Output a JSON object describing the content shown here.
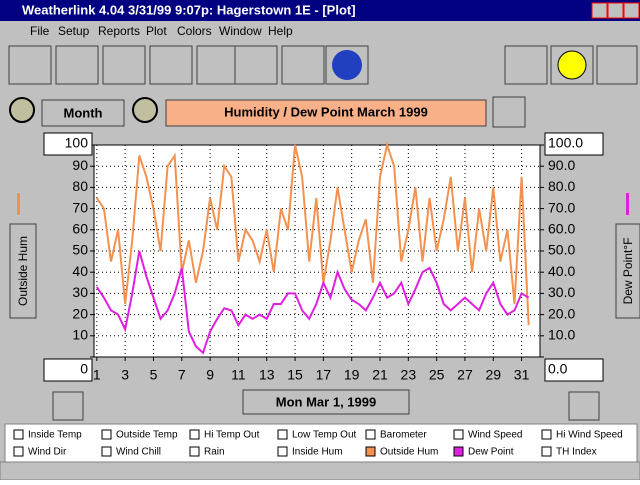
{
  "ui": {
    "window_title": "Weatherlink 4.04   3/31/99   9:07p: Hagerstown 1E - [Plot]",
    "menu": [
      "File",
      "Setup",
      "Reports",
      "Plot",
      "Colors",
      "Window",
      "Help"
    ],
    "period_button": "Month",
    "date_button": "Mon Mar 1, 1999",
    "options": [
      "Inside Temp",
      "Outside Temp",
      "Hi Temp Out",
      "Low Temp Out",
      "Barometer",
      "Wind Speed",
      "Hi Wind Speed",
      "Wind Dir",
      "Wind Chill",
      "Rain",
      "Inside Hum",
      "TH Index"
    ]
  },
  "chart_data": {
    "type": "line",
    "title": "Humidity  /  Dew Point   March 1999",
    "ylabel": "Outside Hum",
    "y2label": "Dew Point°F",
    "x": [
      1,
      1.5,
      2,
      2.5,
      3,
      3.5,
      4,
      4.5,
      5,
      5.5,
      6,
      6.5,
      7,
      7.5,
      8,
      8.5,
      9,
      9.5,
      10,
      10.5,
      11,
      11.5,
      12,
      12.5,
      13,
      13.5,
      14,
      14.5,
      15,
      15.5,
      16,
      16.5,
      17,
      17.5,
      18,
      18.5,
      19,
      19.5,
      20,
      20.5,
      21,
      21.5,
      22,
      22.5,
      23,
      23.5,
      24,
      24.5,
      25,
      25.5,
      26,
      26.5,
      27,
      27.5,
      28,
      28.5,
      29,
      29.5,
      30,
      30.5,
      31,
      31.5
    ],
    "series": [
      {
        "name": "Outside Hum",
        "color": "#f4914f",
        "values": [
          75,
          70,
          45,
          60,
          25,
          55,
          95,
          85,
          70,
          50,
          90,
          95,
          40,
          55,
          35,
          50,
          75,
          60,
          90,
          85,
          45,
          60,
          55,
          45,
          60,
          40,
          70,
          60,
          100,
          85,
          45,
          75,
          35,
          55,
          80,
          60,
          40,
          55,
          65,
          35,
          85,
          100,
          90,
          45,
          60,
          80,
          45,
          75,
          50,
          65,
          85,
          50,
          75,
          40,
          70,
          50,
          80,
          45,
          60,
          25,
          85,
          15
        ]
      },
      {
        "name": "Dew Point",
        "color": "#e020e0",
        "axis": "y2",
        "values": [
          33,
          28,
          22,
          20,
          13,
          30,
          50,
          38,
          28,
          18,
          22,
          30,
          42,
          12,
          5,
          2,
          12,
          18,
          23,
          22,
          15,
          20,
          18,
          20,
          18,
          25,
          25,
          30,
          30,
          22,
          18,
          25,
          35,
          28,
          40,
          32,
          27,
          25,
          22,
          28,
          35,
          28,
          30,
          35,
          25,
          32,
          40,
          42,
          35,
          25,
          22,
          25,
          28,
          25,
          22,
          30,
          35,
          25,
          20,
          22,
          30,
          28
        ]
      }
    ],
    "xlim": [
      0.8,
      32.3
    ],
    "xticks": [
      1,
      3,
      5,
      7,
      9,
      11,
      13,
      15,
      17,
      19,
      21,
      23,
      25,
      27,
      29,
      31
    ],
    "ylim": [
      0,
      100
    ],
    "yticks": [
      0,
      10,
      20,
      30,
      40,
      50,
      60,
      70,
      80,
      90,
      100
    ],
    "y2lim": [
      0,
      100
    ],
    "y2ticks": [
      {
        "value": 0,
        "label": "0.0"
      },
      {
        "value": 10,
        "label": "10.0"
      },
      {
        "value": 20,
        "label": "20.0"
      },
      {
        "value": 30,
        "label": "30.0"
      },
      {
        "value": 40,
        "label": "40.0"
      },
      {
        "value": 50,
        "label": "50.0"
      },
      {
        "value": 60,
        "label": "60.0"
      },
      {
        "value": 70,
        "label": "70.0"
      },
      {
        "value": 80,
        "label": "80.0"
      },
      {
        "value": 90,
        "label": "90.0"
      },
      {
        "value": 100,
        "label": "100.0"
      }
    ],
    "grid": true
  }
}
